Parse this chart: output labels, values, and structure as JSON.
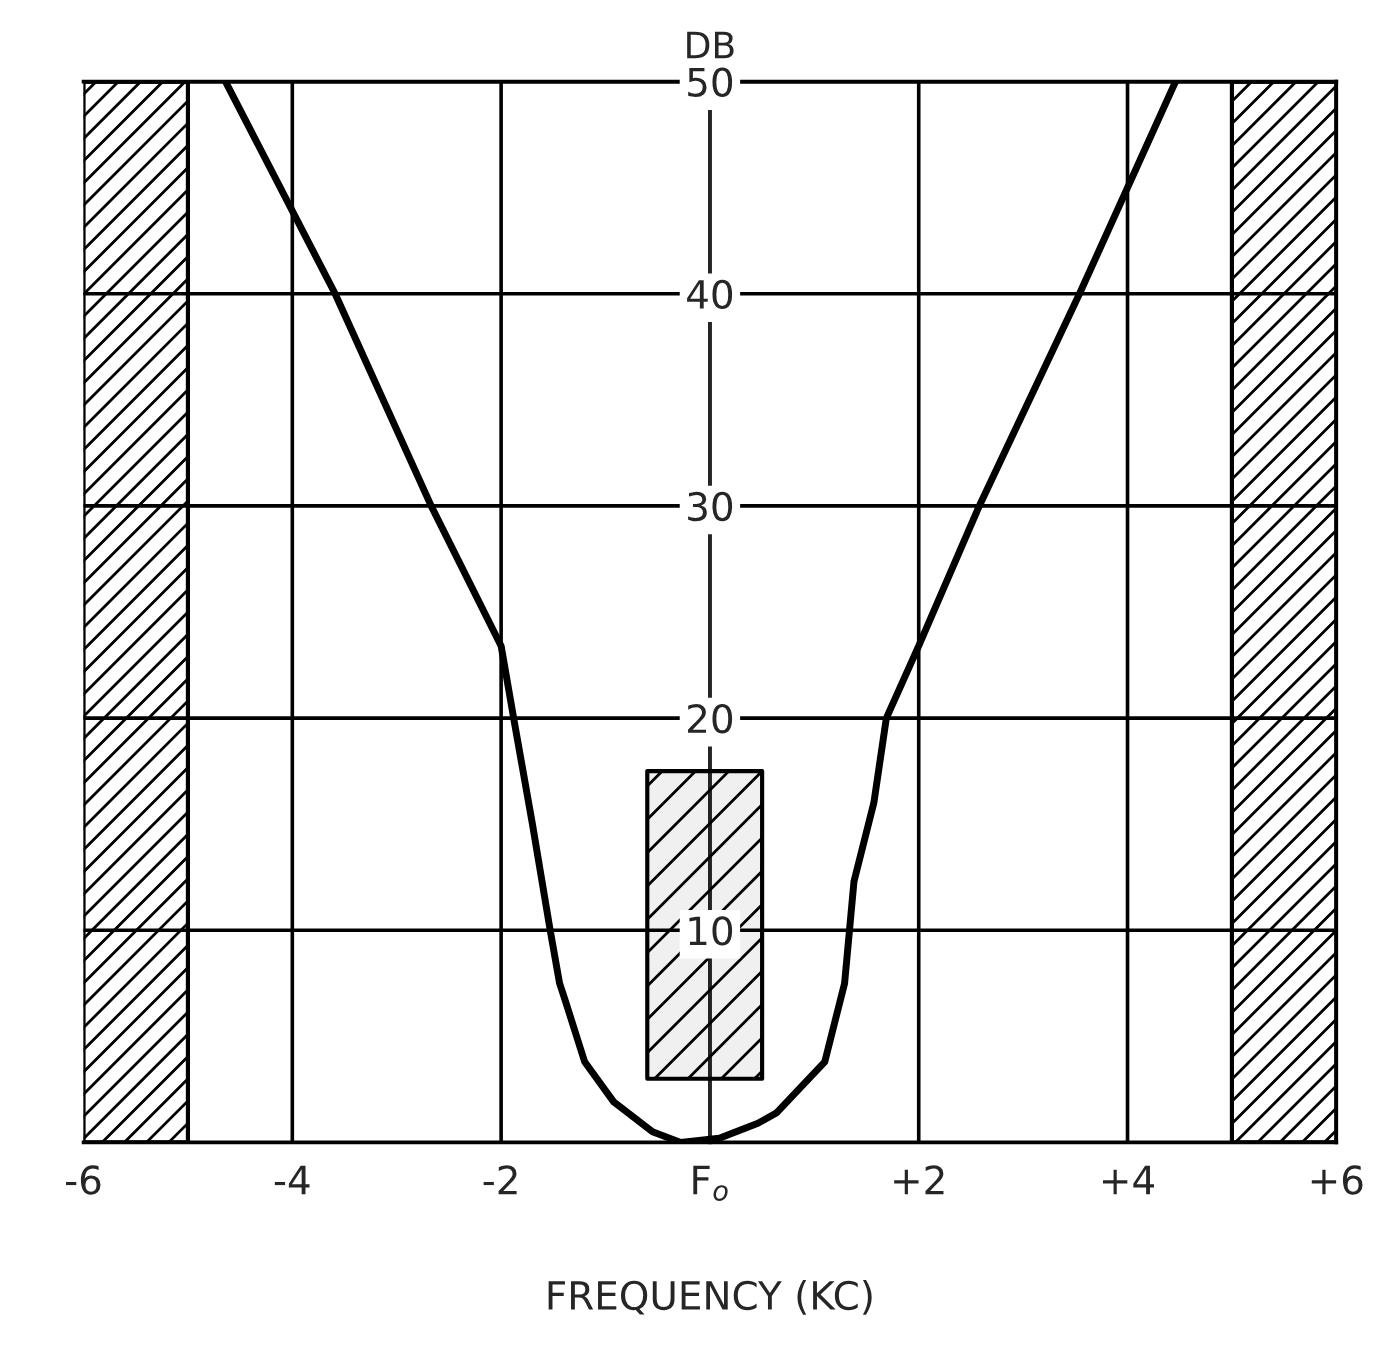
{
  "chart_data": {
    "type": "line",
    "xlabel": "FREQUENCY (KC)",
    "ylabel": "DB",
    "xlim": [
      -6,
      6
    ],
    "ylim": [
      0,
      50
    ],
    "xticks": [
      -6,
      -4,
      -2,
      {
        "value": 0,
        "label": "F$_{o}$"
      },
      {
        "value": 2,
        "label": "+2"
      },
      {
        "value": 4,
        "label": "+4"
      },
      {
        "value": 6,
        "label": "+6"
      }
    ],
    "yticks": [
      10,
      20,
      30,
      40,
      50
    ],
    "grid": true,
    "marker": "none",
    "line_style": "solid",
    "bands": [
      {
        "axis": "x",
        "from": -6,
        "to": -5,
        "color": "#000000"
      },
      {
        "axis": "x",
        "from": 5,
        "to": 6,
        "color": "#000000"
      }
    ],
    "series": [
      {
        "type": "area",
        "color": "#000000",
        "x": [
          -0.6,
          0.5
        ],
        "values": [
          null,
          null
        ],
        "lower": [
          3,
          3
        ],
        "upper": [
          17.5,
          17.5
        ]
      },
      {
        "color": "#000000",
        "x": [
          -4.64,
          -3.59,
          -2.67,
          -2.0,
          -1.88,
          -1.7,
          -1.53,
          -1.44,
          -1.38,
          -1.2,
          -0.92,
          -0.55,
          -0.28,
          0.09,
          0.46,
          0.64,
          1.1,
          1.29,
          1.38,
          1.57,
          1.69,
          2.0,
          2.58,
          3.54,
          4.46
        ],
        "values": [
          50,
          40,
          30,
          23.4,
          20,
          15,
          10,
          7.5,
          6.6,
          3.8,
          1.9,
          0.5,
          0,
          0.2,
          0.9,
          1.4,
          3.8,
          7.5,
          12.3,
          16,
          20,
          23.4,
          30,
          40,
          50
        ]
      }
    ]
  }
}
